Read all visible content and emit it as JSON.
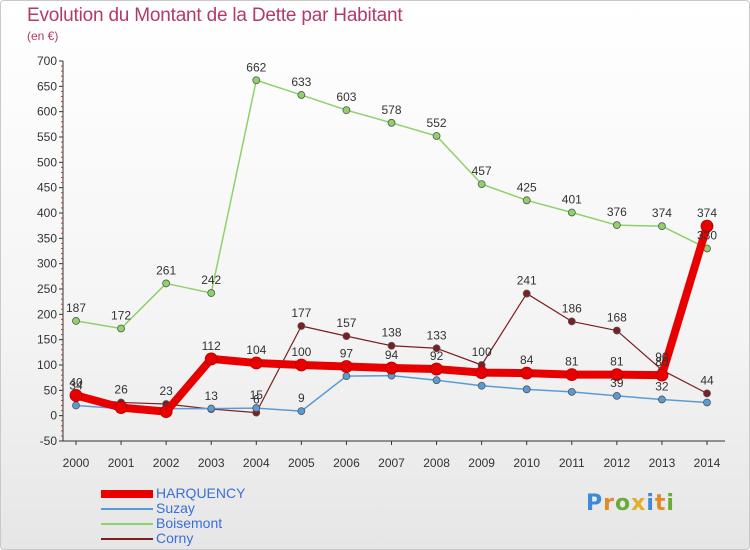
{
  "title": "Evolution du Montant de la Dette par Habitant",
  "unit_note": "(en €)",
  "brand": {
    "text": "Proxiti",
    "letters": [
      {
        "ch": "P",
        "color": "#3a8ad6"
      },
      {
        "ch": "r",
        "color": "#e08a2a"
      },
      {
        "ch": "o",
        "color": "#6aab3a"
      },
      {
        "ch": "x",
        "color": "#e0b02a"
      },
      {
        "ch": "i",
        "color": "#3a8ad6"
      },
      {
        "ch": "t",
        "color": "#e08a2a"
      },
      {
        "ch": "i",
        "color": "#6aab3a"
      }
    ]
  },
  "chart_data": {
    "type": "line",
    "title": "Evolution du Montant de la Dette par Habitant",
    "ylabel": "(en €)",
    "xlabel": "",
    "categories": [
      "2000",
      "2001",
      "2002",
      "2003",
      "2004",
      "2005",
      "2006",
      "2007",
      "2008",
      "2009",
      "2010",
      "2011",
      "2012",
      "2013",
      "2014"
    ],
    "ylim": [
      -50,
      700
    ],
    "yticks": [
      -50,
      0,
      50,
      100,
      150,
      200,
      250,
      300,
      350,
      400,
      450,
      500,
      550,
      600,
      650,
      700
    ],
    "grid": false,
    "legend_position": "bottom-left",
    "series": [
      {
        "name": "HARQUENCY",
        "color": "#e80000",
        "width": 8,
        "values": [
          40,
          16,
          8,
          112,
          104,
          100,
          97,
          94,
          92,
          85,
          84,
          81,
          81,
          80,
          374
        ],
        "labels": [
          "40",
          "",
          "",
          "112",
          "104",
          "100",
          "97",
          "94",
          "92",
          "",
          "84",
          "81",
          "81",
          "80",
          "374"
        ]
      },
      {
        "name": "Suzay",
        "color": "#5b9bd5",
        "width": 1.5,
        "values": [
          20,
          14,
          14,
          14,
          15,
          9,
          78,
          79,
          70,
          59,
          52,
          47,
          39,
          32,
          26
        ],
        "labels": [
          "",
          "",
          "",
          "",
          "15",
          "9",
          "",
          "",
          "",
          "",
          "",
          "",
          "39",
          "32",
          ""
        ]
      },
      {
        "name": "Boisemont",
        "color": "#8fd16a",
        "width": 1.5,
        "values": [
          187,
          172,
          261,
          242,
          662,
          633,
          603,
          578,
          552,
          457,
          425,
          401,
          376,
          374,
          330
        ],
        "labels": [
          "187",
          "172",
          "261",
          "242",
          "662",
          "633",
          "603",
          "578",
          "552",
          "457",
          "425",
          "401",
          "376",
          "374",
          "330"
        ]
      },
      {
        "name": "Corny",
        "color": "#7a1f22",
        "width": 1.2,
        "values": [
          34,
          26,
          23,
          13,
          6,
          177,
          157,
          138,
          133,
          100,
          241,
          186,
          168,
          90,
          44
        ],
        "labels": [
          "34",
          "26",
          "23",
          "13",
          "6",
          "177",
          "157",
          "138",
          "133",
          "100",
          "241",
          "186",
          "168",
          "90",
          "44"
        ]
      }
    ]
  }
}
